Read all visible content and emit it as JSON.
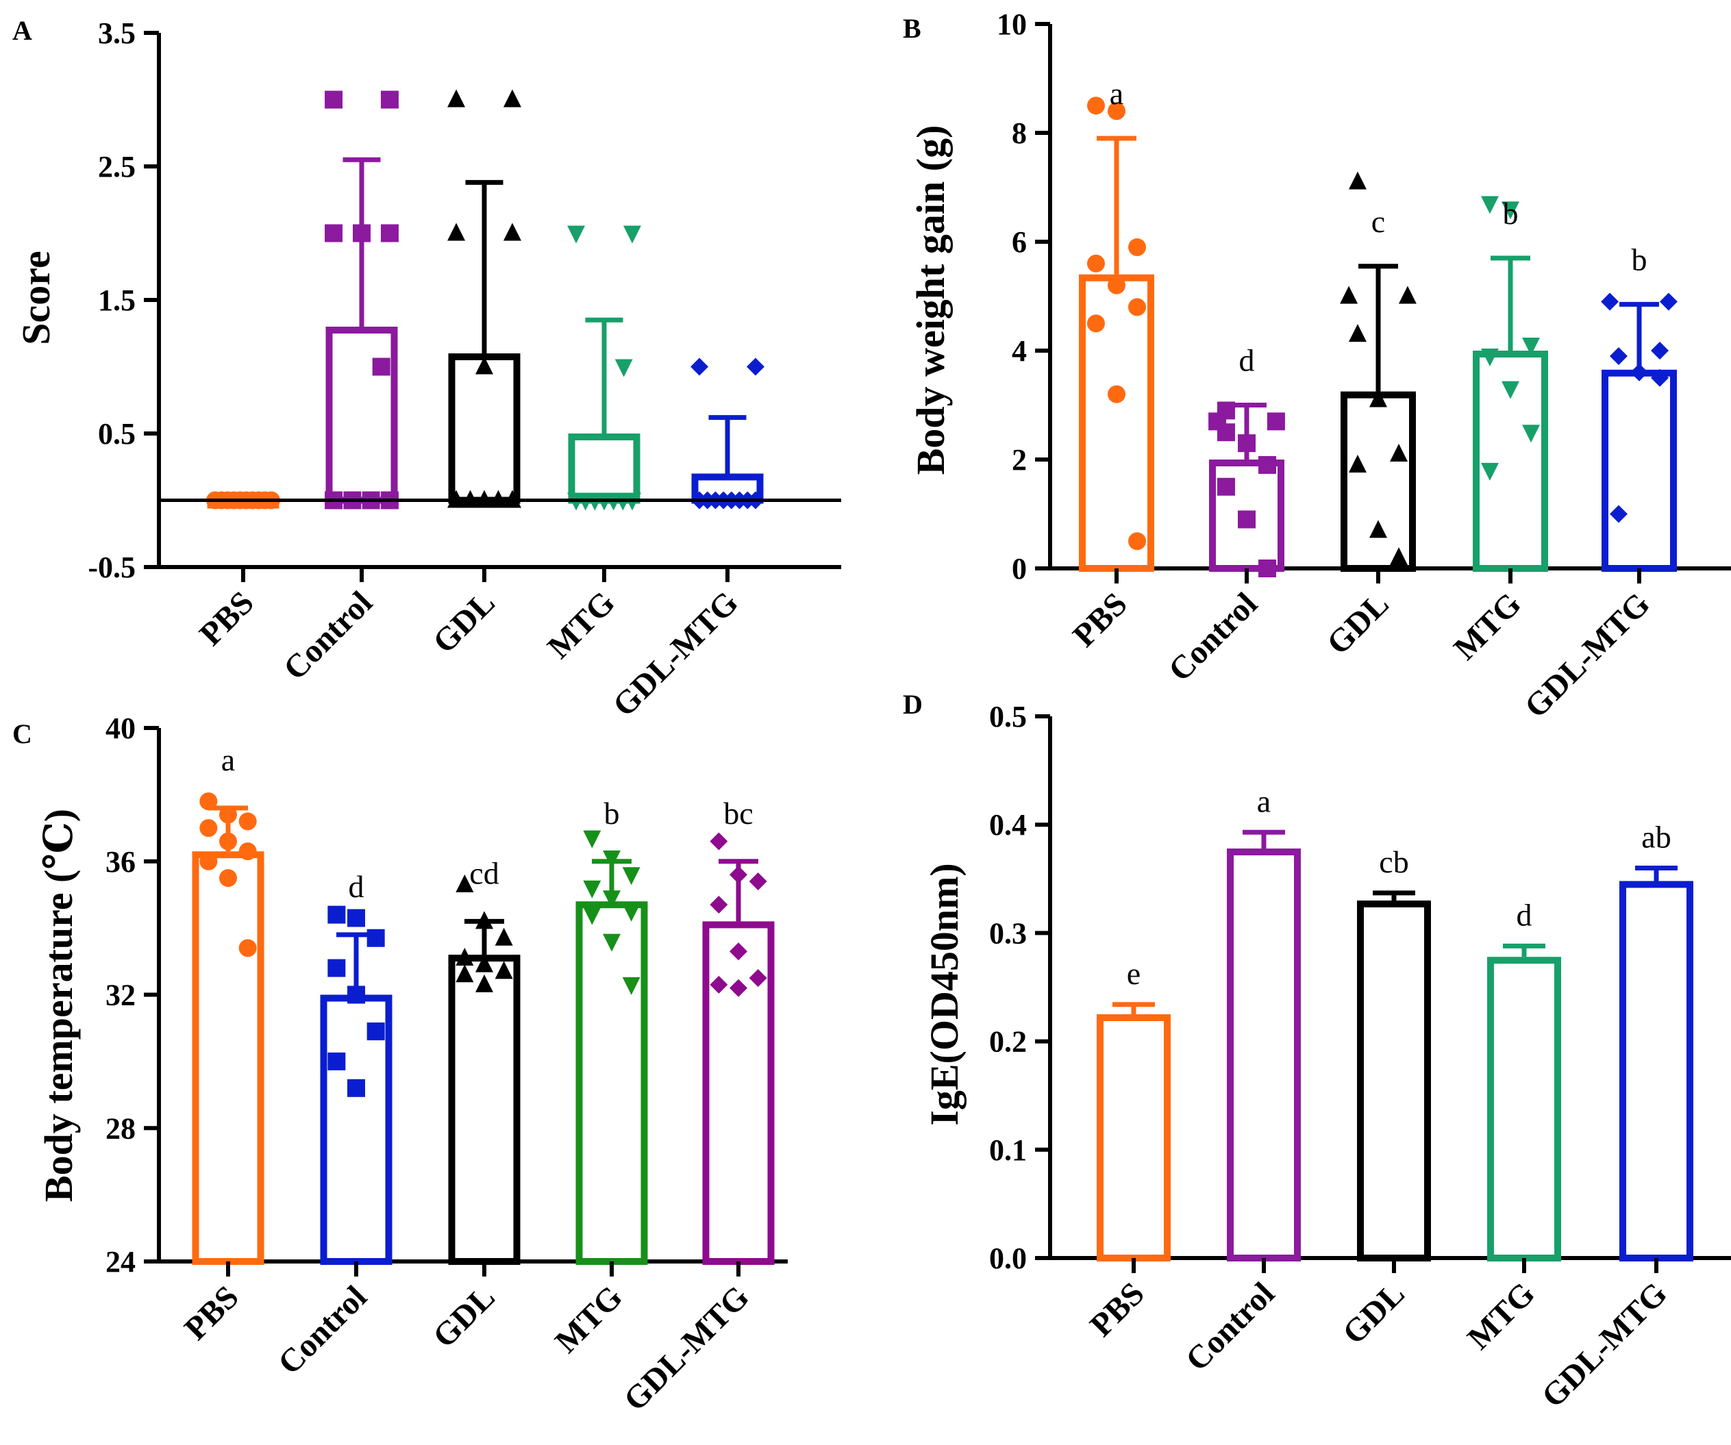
{
  "chart_data": [
    {
      "id": "A",
      "panel_label": "A",
      "type": "bar",
      "ylabel": "Score",
      "xlabel": "",
      "ylim": [
        -0.5,
        3.5
      ],
      "yticks": [
        "3.5",
        "2.5",
        "1.5",
        "0.5",
        "-0.5"
      ],
      "zero_line": true,
      "categories": [
        "PBS",
        "Control",
        "GDL",
        "MTG",
        "GDL-MTG"
      ],
      "values": [
        0,
        1.3,
        1.1,
        0.5,
        0.2
      ],
      "errors": [
        0,
        1.25,
        1.28,
        0.85,
        0.42
      ],
      "colors": [
        "#FF6A10",
        "#8B1A9E",
        "#000000",
        "#17A06A",
        "#0A1ED0"
      ],
      "markers": [
        "circle",
        "square",
        "triangle",
        "triangle-down",
        "diamond"
      ],
      "points": [
        [
          0,
          0,
          0,
          0,
          0,
          0,
          0,
          0,
          0,
          0
        ],
        [
          3,
          3,
          2,
          2,
          2,
          1,
          0,
          0,
          0,
          0
        ],
        [
          3,
          3,
          2,
          2,
          1,
          0,
          0,
          0,
          0,
          0
        ],
        [
          2,
          2,
          1,
          0,
          0,
          0,
          0,
          0,
          0,
          0
        ],
        [
          1,
          1,
          0,
          0,
          0,
          0,
          0,
          0,
          0,
          0
        ]
      ],
      "sig_letters": []
    },
    {
      "id": "B",
      "panel_label": "B",
      "type": "bar",
      "ylabel": "Body weight gain (g)",
      "xlabel": "",
      "ylim": [
        0,
        10
      ],
      "yticks": [
        "10",
        "8",
        "6",
        "4",
        "2",
        "0"
      ],
      "zero_line": false,
      "categories": [
        "PBS",
        "Control",
        "GDL",
        "MTG",
        "GDL-MTG"
      ],
      "values": [
        5.4,
        2.0,
        3.25,
        4.0,
        3.65
      ],
      "errors": [
        2.5,
        1.0,
        2.3,
        1.7,
        1.2
      ],
      "colors": [
        "#FF6A10",
        "#8B1A9E",
        "#000000",
        "#17A06A",
        "#0A1ED0"
      ],
      "markers": [
        "circle",
        "square",
        "triangle",
        "triangle-down",
        "diamond"
      ],
      "points": [
        [
          8.5,
          8.4,
          5.9,
          5.6,
          5.2,
          4.8,
          4.5,
          3.2,
          0.5
        ],
        [
          2.9,
          2.7,
          2.7,
          2.5,
          2.3,
          1.9,
          1.5,
          0.9,
          0.0
        ],
        [
          7.1,
          5.0,
          5.0,
          4.3,
          3.1,
          2.1,
          1.9,
          0.7,
          0.2
        ],
        [
          6.7,
          6.6,
          4.1,
          3.9,
          3.3,
          2.5,
          1.8
        ],
        [
          4.9,
          4.9,
          4.0,
          3.9,
          3.6,
          3.5,
          1.0
        ]
      ],
      "sig_letters": [
        "a",
        "d",
        "c",
        "b",
        "b"
      ]
    },
    {
      "id": "C",
      "panel_label": "C",
      "type": "bar",
      "ylabel": "Body temperature (℃)",
      "xlabel": "",
      "ylim": [
        24,
        40
      ],
      "yticks": [
        "40",
        "36",
        "32",
        "28",
        "24"
      ],
      "zero_line": false,
      "categories": [
        "PBS",
        "Control",
        "GDL",
        "MTG",
        "GDL-MTG"
      ],
      "values": [
        36.3,
        32.0,
        33.2,
        34.8,
        34.2
      ],
      "errors": [
        1.3,
        1.8,
        1.0,
        1.2,
        1.8
      ],
      "colors": [
        "#FF6A10",
        "#0A1ED0",
        "#000000",
        "#17901A",
        "#8E0A8E"
      ],
      "markers": [
        "circle",
        "square",
        "triangle",
        "triangle-down",
        "diamond"
      ],
      "points": [
        [
          37.8,
          37.4,
          37.2,
          37.0,
          36.6,
          36.3,
          36.0,
          35.5,
          33.4
        ],
        [
          34.4,
          34.3,
          33.7,
          32.8,
          32.0,
          30.9,
          30.0,
          29.2
        ],
        [
          35.3,
          34.2,
          33.7,
          33.1,
          32.9,
          32.7,
          32.6,
          32.3
        ],
        [
          36.7,
          36.1,
          35.6,
          35.2,
          34.9,
          34.5,
          34.4,
          33.6,
          32.3
        ],
        [
          36.6,
          35.6,
          35.4,
          34.7,
          33.3,
          32.5,
          32.3,
          32.2
        ]
      ],
      "sig_letters": [
        "a",
        "d",
        "cd",
        "b",
        "bc"
      ]
    },
    {
      "id": "D",
      "panel_label": "D",
      "type": "bar",
      "ylabel": "IgE(OD450nm)",
      "xlabel": "",
      "ylim": [
        0,
        0.5
      ],
      "yticks": [
        "0.5",
        "0.4",
        "0.3",
        "0.2",
        "0.1",
        "0.0"
      ],
      "zero_line": false,
      "categories": [
        "PBS",
        "Control",
        "GDL",
        "MTG",
        "GDL-MTG"
      ],
      "values": [
        0.225,
        0.378,
        0.33,
        0.278,
        0.348
      ],
      "errors": [
        0.009,
        0.015,
        0.007,
        0.01,
        0.012
      ],
      "colors": [
        "#FF6A10",
        "#8B1A9E",
        "#000000",
        "#17A06A",
        "#0A1ED0"
      ],
      "markers": [],
      "points": [],
      "sig_letters": [
        "e",
        "a",
        "cb",
        "d",
        "ab"
      ]
    }
  ]
}
